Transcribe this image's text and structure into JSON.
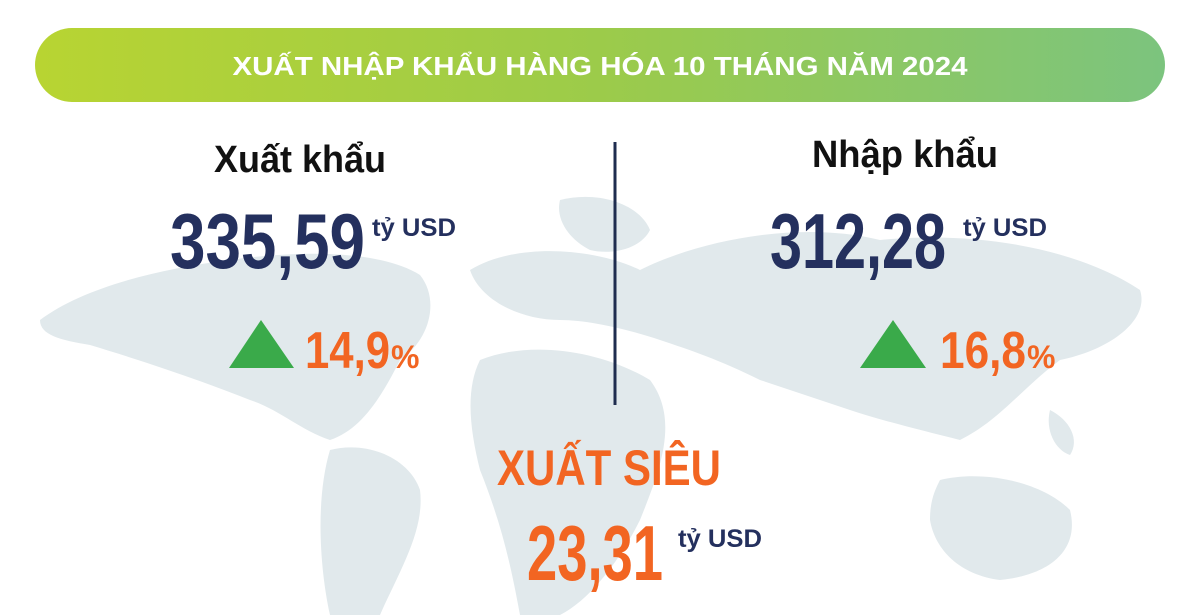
{
  "title": "XUẤT NHẬP KHẨU HÀNG HÓA 10 THÁNG NĂM 2024",
  "export": {
    "label": "Xuất khẩu",
    "amount": "335,59",
    "unit": "tỷ USD",
    "growth": "14,9",
    "growth_unit": "%"
  },
  "import": {
    "label": "Nhập khẩu",
    "amount": "312,28",
    "unit": "tỷ USD",
    "growth": "16,8",
    "growth_unit": "%"
  },
  "surplus": {
    "label": "XUẤT SIÊU",
    "amount": "23,31",
    "unit": "tỷ USD"
  }
}
